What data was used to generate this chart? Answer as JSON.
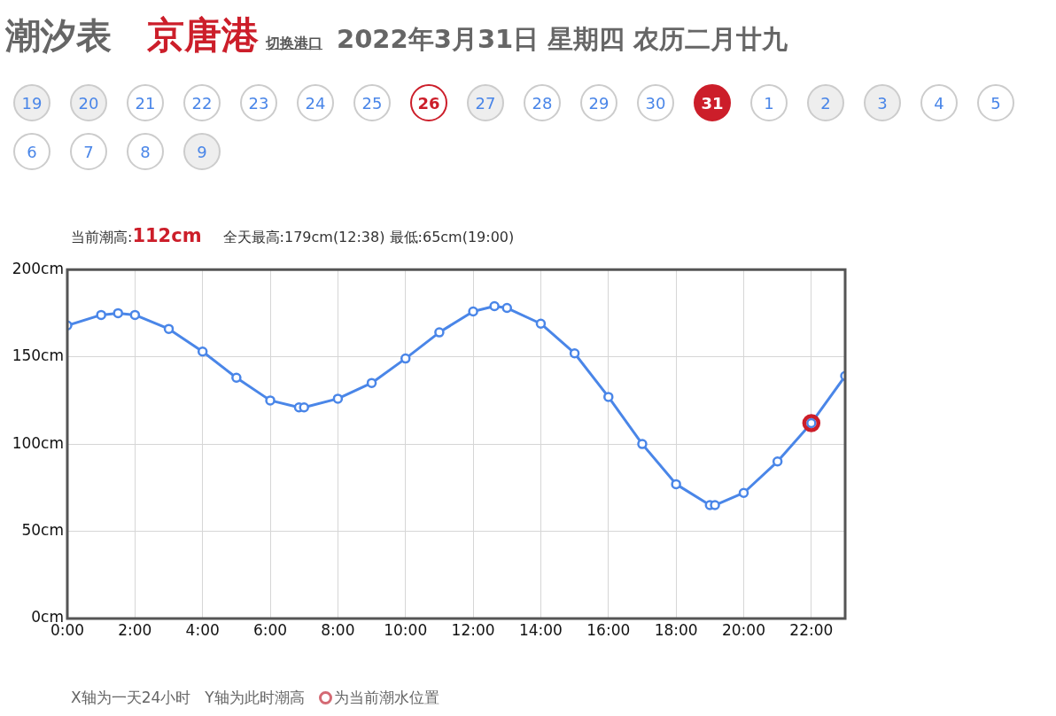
{
  "chart_data": {
    "type": "line",
    "title": "潮汐表",
    "subtitle": "京唐港",
    "annotations": [
      "切换港口",
      "2022年3月31日 星期四 农历二月廿九",
      "当前潮高:",
      "112cm",
      "全天最高:179cm(12:38) 最低:65cm(19:00)",
      "X轴为一天24小时",
      "Y轴为此时潮高",
      "为当前潮水位置",
      "19",
      "20",
      "21",
      "22",
      "23",
      "24",
      "25",
      "26",
      "27",
      "28",
      "29",
      "30",
      "31",
      "1",
      "2",
      "3",
      "4",
      "5",
      "6",
      "7",
      "8",
      "9"
    ],
    "series": [
      {
        "type": "line",
        "color": "#4a86e8",
        "x": [
          0,
          1,
          1.5,
          2,
          3,
          4,
          5,
          6,
          6.85,
          7,
          8,
          9,
          10,
          11,
          12,
          12.63,
          13,
          14,
          15,
          16,
          17,
          18,
          19,
          19.15,
          20,
          21,
          22,
          23
        ],
        "values": [
          168,
          174,
          175,
          174,
          166,
          153,
          138,
          125,
          121,
          121,
          126,
          135,
          149,
          164,
          176,
          179,
          178,
          169,
          152,
          127,
          100,
          77,
          65,
          65,
          72,
          90,
          112,
          139
        ]
      },
      {
        "type": "scatter",
        "color": "#cc1e2a",
        "x": [
          22
        ],
        "values": [
          112
        ]
      }
    ],
    "xlim": [
      0,
      23
    ],
    "xticks": [
      {
        "value": 0,
        "label": "0:00"
      },
      {
        "value": 2,
        "label": "2:00"
      },
      {
        "value": 4,
        "label": "4:00"
      },
      {
        "value": 6,
        "label": "6:00"
      },
      {
        "value": 8,
        "label": "8:00"
      },
      {
        "value": 10,
        "label": "10:00"
      },
      {
        "value": 12,
        "label": "12:00"
      },
      {
        "value": 14,
        "label": "14:00"
      },
      {
        "value": 16,
        "label": "16:00"
      },
      {
        "value": 18,
        "label": "18:00"
      },
      {
        "value": 20,
        "label": "20:00"
      },
      {
        "value": 22,
        "label": "22:00"
      }
    ],
    "ylim": [
      0,
      200
    ],
    "yticks": [
      {
        "value": 0,
        "label": "0cm"
      },
      {
        "value": 50,
        "label": "50cm"
      },
      {
        "value": 100,
        "label": "100cm"
      },
      {
        "value": 150,
        "label": "150cm"
      },
      {
        "value": 200,
        "label": "200cm"
      }
    ],
    "grid": true,
    "legend": false,
    "marker": "circle",
    "line_style": "solid"
  }
}
